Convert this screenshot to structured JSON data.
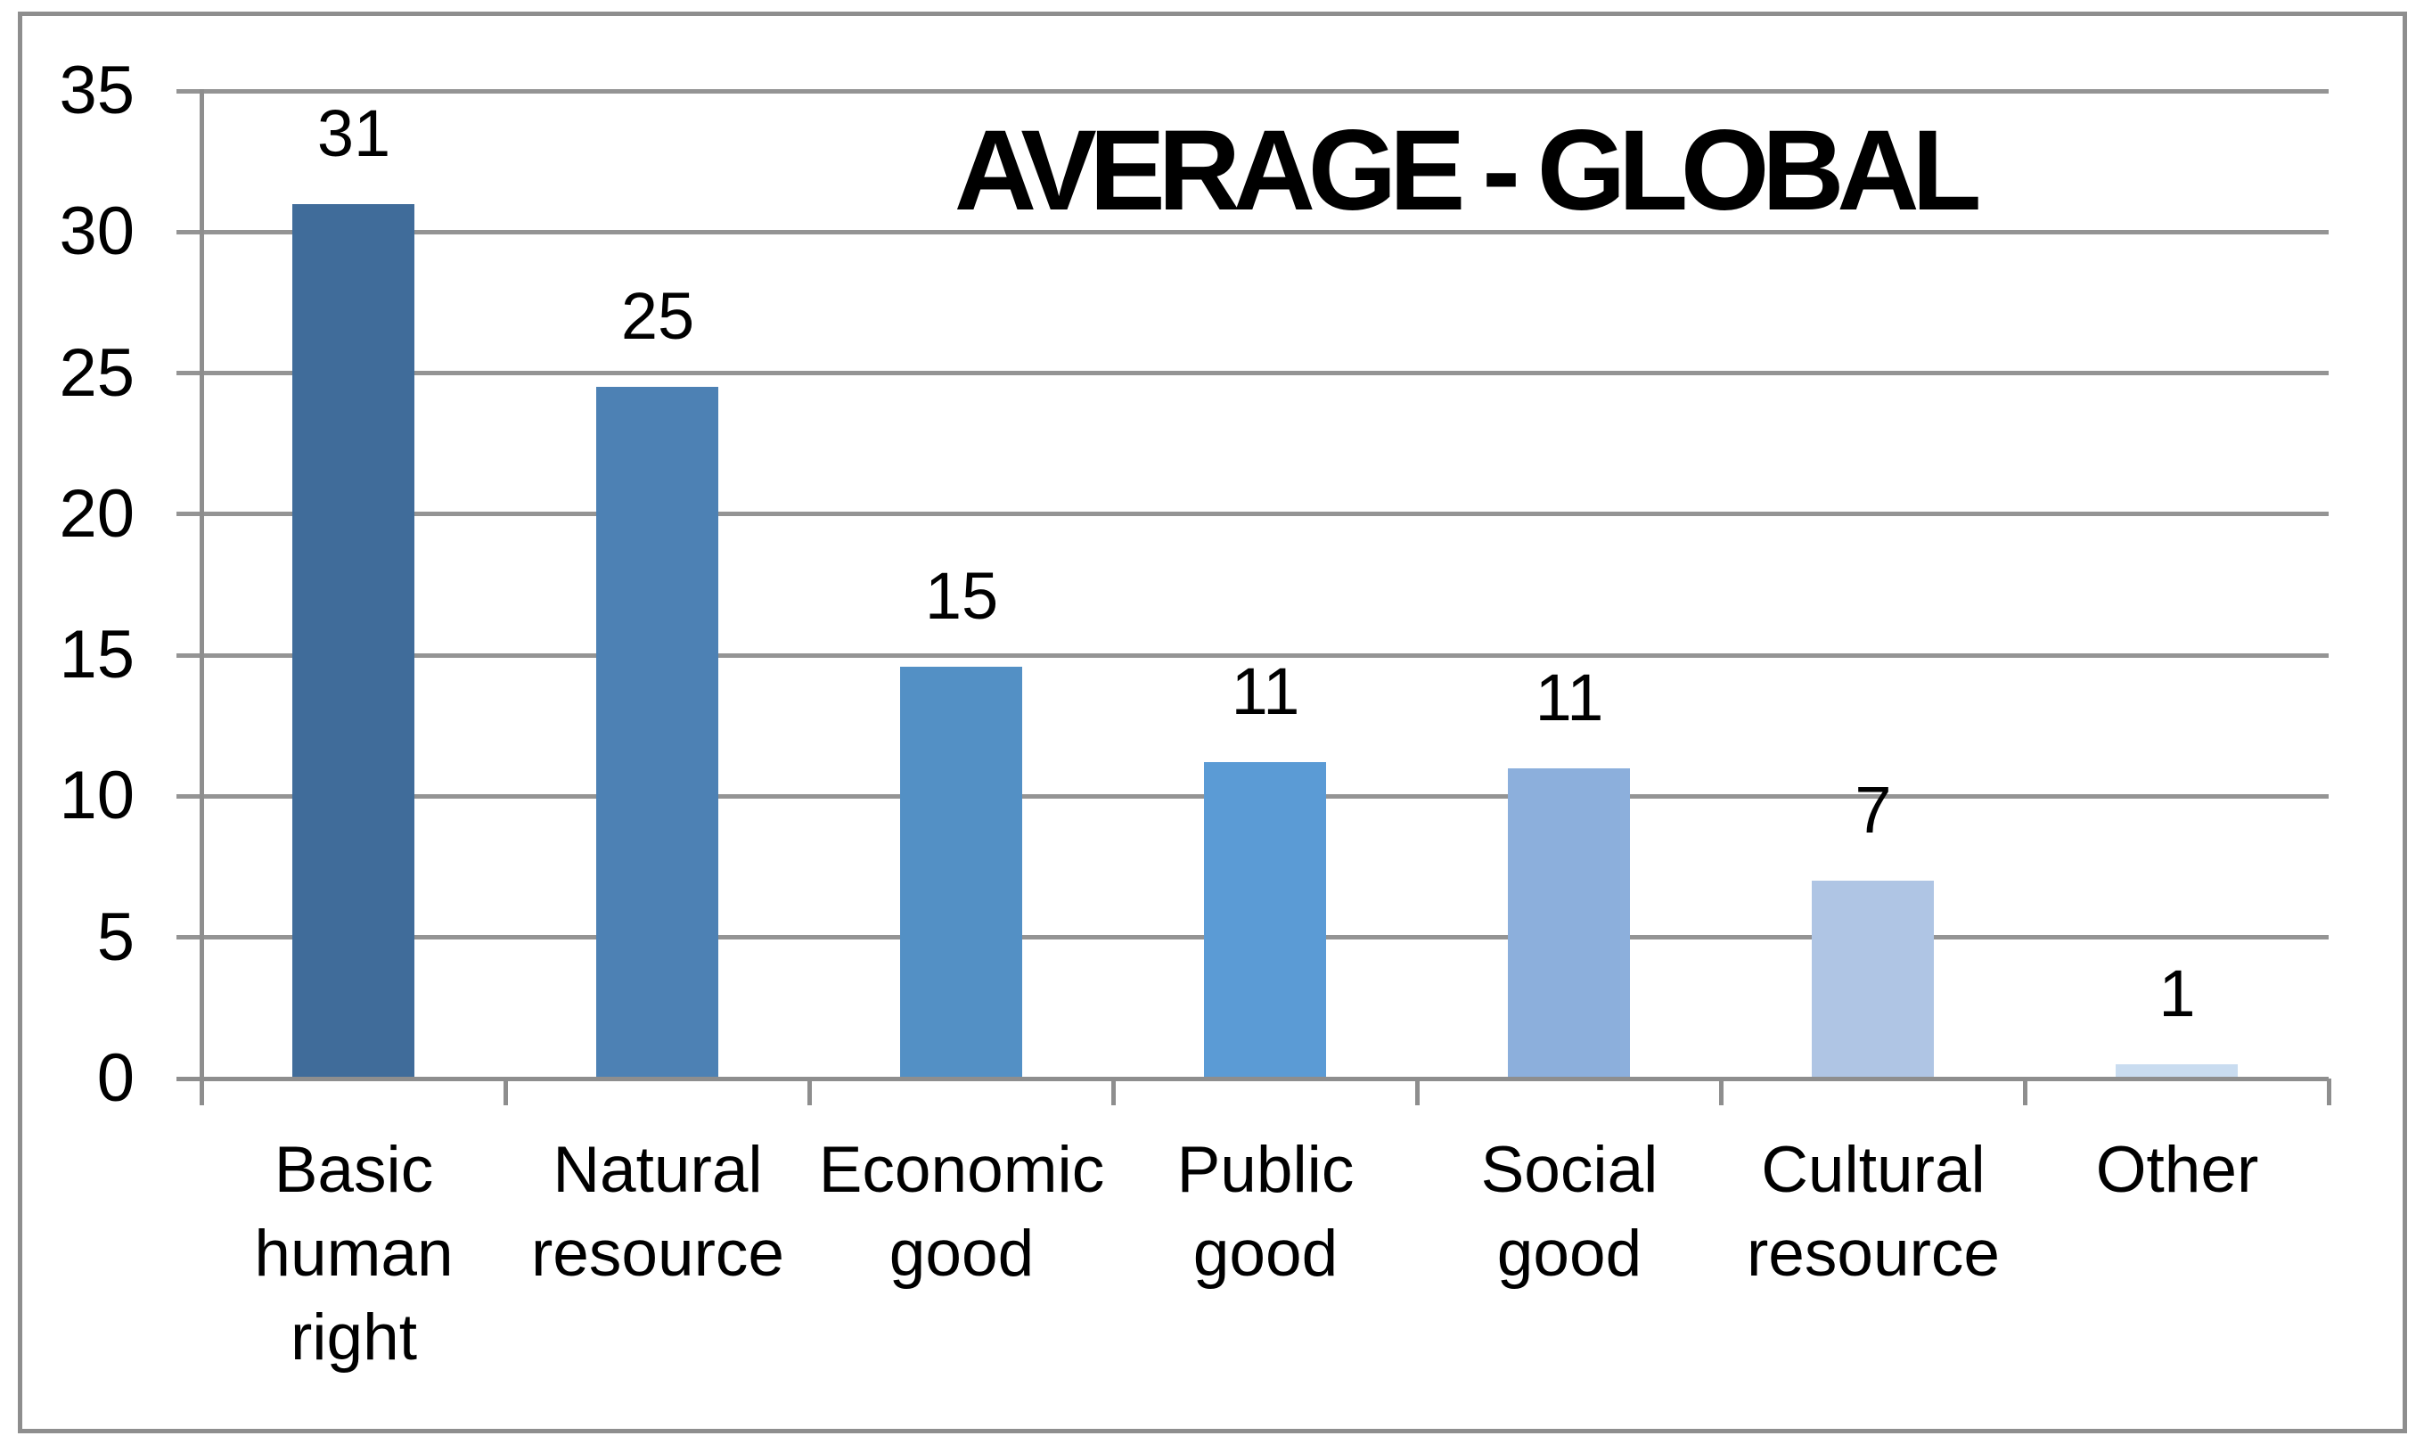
{
  "window": {
    "background": "#ffffff",
    "border_color": "#8e8e8e"
  },
  "chart_data": {
    "type": "bar",
    "title": "AVERAGE - GLOBAL",
    "categories": [
      "Basic human right",
      "Natural resource",
      "Economic good",
      "Public good",
      "Social good",
      "Cultural resource",
      "Other"
    ],
    "category_labels_wrapped": [
      "Basic\nhuman\nright",
      "Natural\nresource",
      "Economic\ngood",
      "Public\ngood",
      "Social\ngood",
      "Cultural\nresource",
      "Other"
    ],
    "values": [
      31,
      25,
      15,
      11,
      11,
      7,
      1
    ],
    "bar_heights_est": [
      31.0,
      24.5,
      14.6,
      11.2,
      11.0,
      7.0,
      0.5
    ],
    "data_labels": [
      "31",
      "25",
      "15",
      "11",
      "11",
      "7",
      "1"
    ],
    "bar_colors": [
      "#406C9A",
      "#4D81B4",
      "#5390C5",
      "#5B9BD5",
      "#8CAFDC",
      "#AFC5E4",
      "#C9DCF0"
    ],
    "xlabel": "",
    "ylabel": "",
    "ylim": [
      0,
      35
    ],
    "ytick_interval": 5,
    "yticks": [
      "0",
      "5",
      "10",
      "15",
      "20",
      "25",
      "30",
      "35"
    ],
    "grid": true,
    "legend": "none",
    "gridline_color": "#949494",
    "axis_color": "#8e8e8e",
    "text_color": "#000000",
    "title_color": "#000000"
  }
}
